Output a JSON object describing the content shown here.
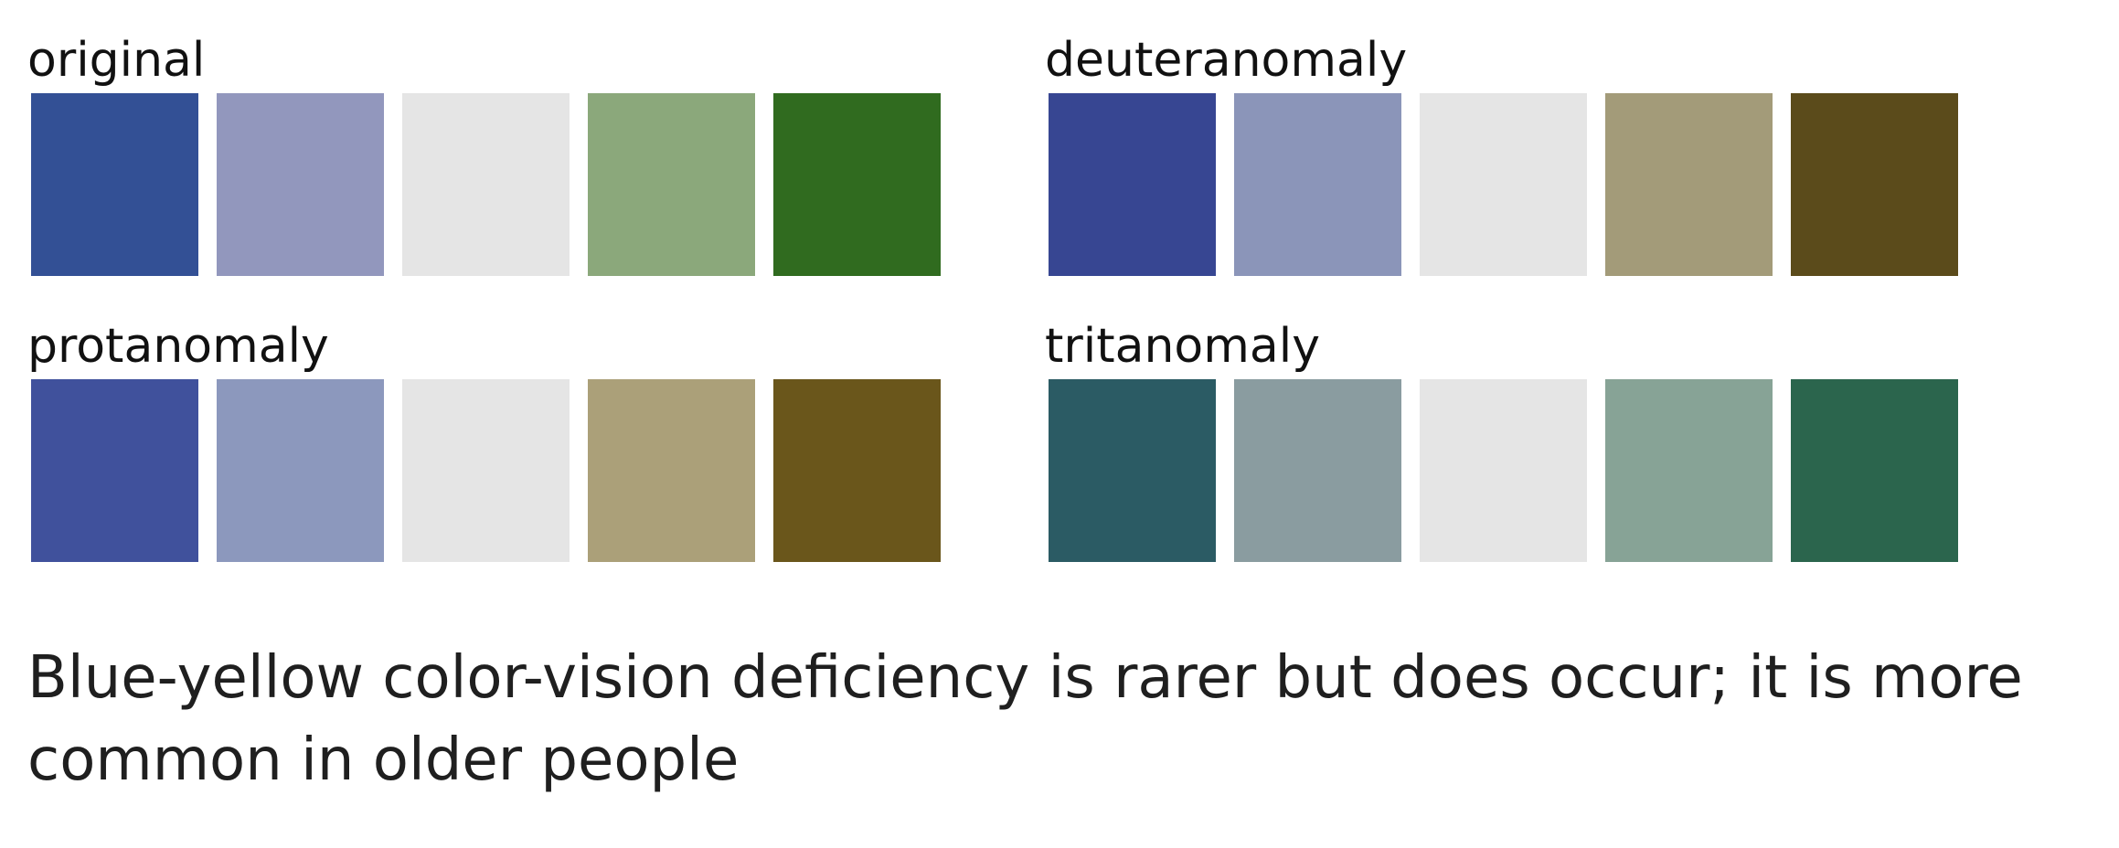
{
  "panels": [
    {
      "id": "original",
      "label": "original",
      "colors": [
        "#335095",
        "#9297bd",
        "#e5e5e5",
        "#8ba87b",
        "#306b1f"
      ]
    },
    {
      "id": "deuteranomaly",
      "label": "deuteranomaly",
      "colors": [
        "#374692",
        "#8b95b9",
        "#e5e5e5",
        "#a39b79",
        "#5b4b1b"
      ]
    },
    {
      "id": "protanomaly",
      "label": "protanomaly",
      "colors": [
        "#40519c",
        "#8c98bd",
        "#e5e5e5",
        "#aba079",
        "#6a561b"
      ]
    },
    {
      "id": "tritanomaly",
      "label": "tritanomaly",
      "colors": [
        "#2b5b64",
        "#8a9ca0",
        "#e5e5e5",
        "#87a396",
        "#2b654d"
      ]
    }
  ],
  "caption": {
    "line1": "Blue-yellow color-vision deficiency is rarer but does occur; it is more",
    "line2": "common in older people"
  }
}
